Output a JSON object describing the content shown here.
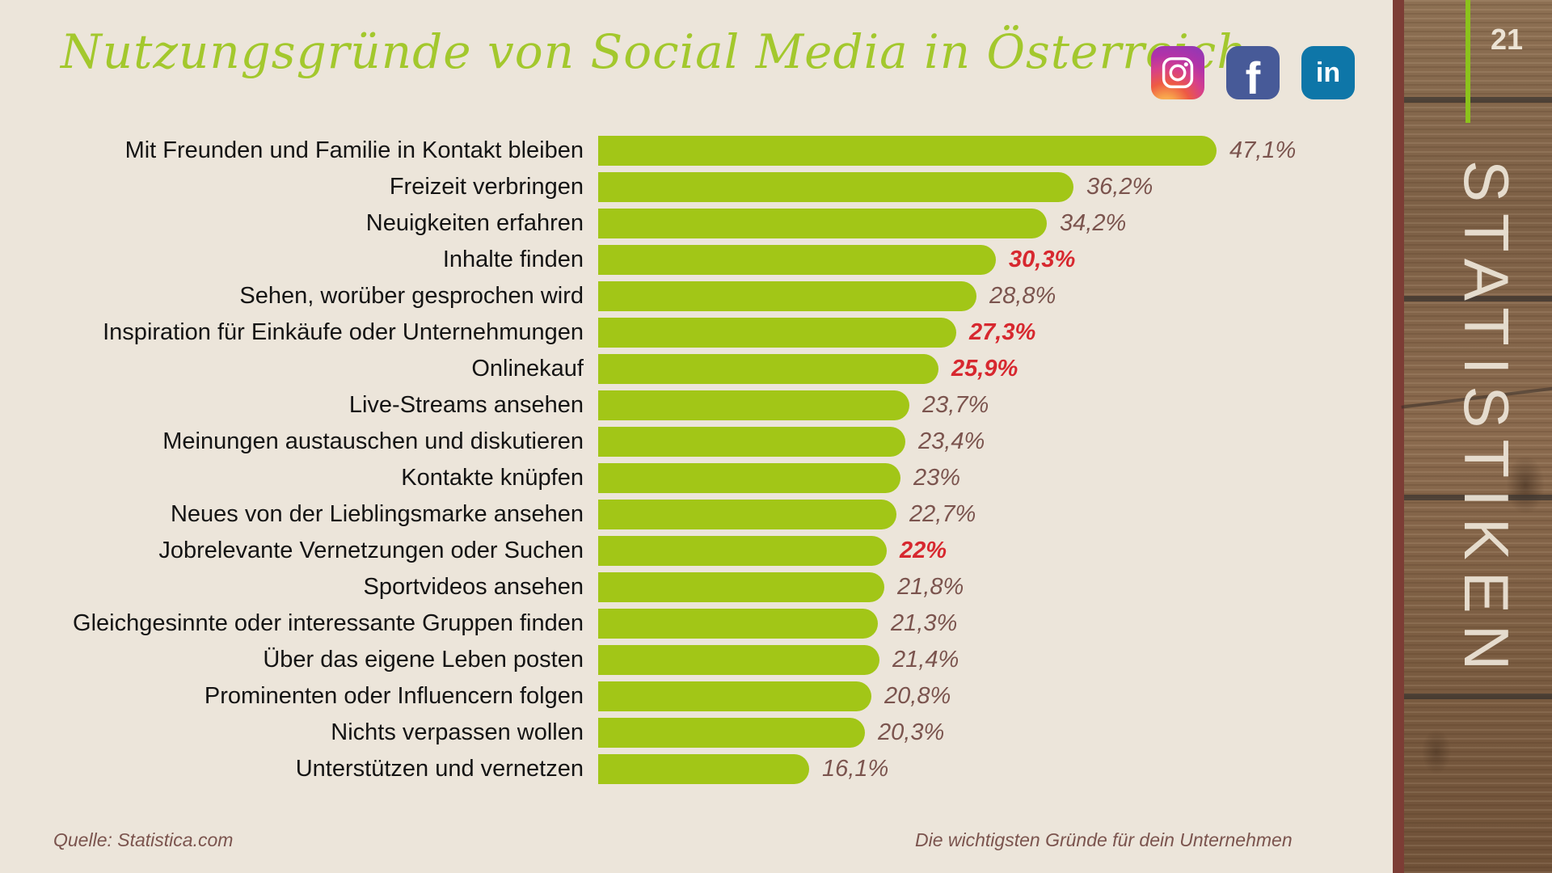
{
  "header": {
    "title": "Nutzungsgründe von Social Media in Österreich",
    "icons": {
      "instagram": "instagram",
      "facebook_glyph": "f",
      "linkedin_glyph": "in"
    }
  },
  "sidebar": {
    "page_number": "21",
    "label": "STATISTIKEN"
  },
  "footer": {
    "source": "Quelle: Statistica.com",
    "note": "Die wichtigsten Gründe für dein Unternehmen"
  },
  "colors": {
    "background": "#ece5da",
    "bar_green": "#a2c617",
    "title_green": "#a3c82d",
    "value_brown": "#7b544e",
    "value_red": "#d7282f",
    "label_dark": "#141414",
    "maroon_strip": "#7c3d35",
    "wood_brown": "#86684c",
    "sidebar_text": "#ece3d4",
    "accent_line_green": "#8cc21c",
    "facebook_blue": "#475a98",
    "linkedin_blue": "#0e76a8"
  },
  "chart_data": {
    "type": "bar",
    "orientation": "horizontal",
    "title": "Nutzungsgründe von Social Media in Österreich",
    "xlabel": "",
    "ylabel": "",
    "unit": "%",
    "xlim": [
      0,
      50
    ],
    "grid": false,
    "bar_color": "#a2c617",
    "highlight_color": "#d7282f",
    "categories": [
      "Mit Freunden und Familie in Kontakt bleiben",
      "Freizeit verbringen",
      "Neuigkeiten erfahren",
      "Inhalte finden",
      "Sehen, worüber gesprochen wird",
      "Inspiration für Einkäufe oder Unternehmungen",
      "Onlinekauf",
      "Live-Streams ansehen",
      "Meinungen austauschen und diskutieren",
      "Kontakte knüpfen",
      "Neues von der Lieblingsmarke ansehen",
      "Jobrelevante Vernetzungen oder Suchen",
      "Sportvideos ansehen",
      "Gleichgesinnte oder interessante Gruppen finden",
      "Über das eigene Leben posten",
      "Prominenten oder Influencern folgen",
      "Nichts verpassen wollen",
      "Unterstützen und vernetzen"
    ],
    "values": [
      47.1,
      36.2,
      34.2,
      30.3,
      28.8,
      27.3,
      25.9,
      23.7,
      23.4,
      23,
      22.7,
      22,
      21.8,
      21.3,
      21.4,
      20.8,
      20.3,
      16.1
    ],
    "value_labels": [
      "47,1%",
      "36,2%",
      "34,2%",
      "30,3%",
      "28,8%",
      "27,3%",
      "25,9%",
      "23,7%",
      "23,4%",
      "23%",
      "22,7%",
      "22%",
      "21,8%",
      "21,3%",
      "21,4%",
      "20,8%",
      "20,3%",
      "16,1%"
    ],
    "highlighted": [
      false,
      false,
      false,
      true,
      false,
      true,
      true,
      false,
      false,
      false,
      false,
      true,
      false,
      false,
      false,
      false,
      false,
      false
    ]
  }
}
